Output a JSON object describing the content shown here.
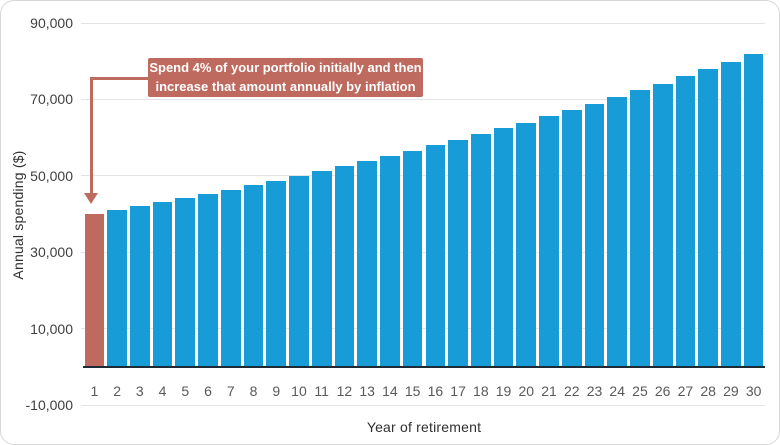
{
  "chart_data": {
    "type": "bar",
    "title": "",
    "xlabel": "Year of retirement",
    "ylabel": "Annual spending ($)",
    "categories": [
      "1",
      "2",
      "3",
      "4",
      "5",
      "6",
      "7",
      "8",
      "9",
      "10",
      "11",
      "12",
      "13",
      "14",
      "15",
      "16",
      "17",
      "18",
      "19",
      "20",
      "21",
      "22",
      "23",
      "24",
      "25",
      "26",
      "27",
      "28",
      "29",
      "30"
    ],
    "values": [
      40000,
      41000,
      42025,
      43076,
      44153,
      45256,
      46388,
      47548,
      48736,
      49955,
      51204,
      52484,
      53796,
      55141,
      56520,
      57933,
      59381,
      60866,
      62387,
      63947,
      65546,
      67184,
      68864,
      70585,
      72350,
      74159,
      76013,
      77913,
      79861,
      81857
    ],
    "ylim": [
      -10000,
      90000
    ],
    "yticks": [
      90000,
      70000,
      50000,
      30000,
      10000,
      -10000
    ],
    "ytick_labels": [
      "90,000",
      "70,000",
      "50,000",
      "30,000",
      "10,000",
      "-10,000"
    ],
    "grid": true,
    "legend": "none",
    "bar_color": "#189cd8",
    "highlight_index": 0,
    "highlight_color": "#be6a5f",
    "annotation": {
      "line1": "Spend 4% of your portfolio initially and then",
      "line2": "increase that amount annually by inflation",
      "bg_color": "#be6a5f",
      "text_color": "#ffffff",
      "points_to_category": "1"
    }
  },
  "colors": {
    "background": "#ffffff",
    "card_border": "#d8d8d8",
    "gridline": "#e4e4e4",
    "axis_line": "#1c2b36",
    "ytick_text": "#3f3f3f",
    "xtick_text": "#595959",
    "axis_title_text": "#303030"
  }
}
